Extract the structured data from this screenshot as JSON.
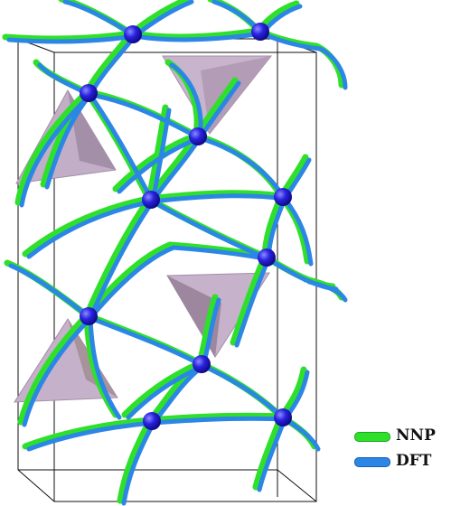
{
  "legend": {
    "items": [
      {
        "label": "NNP",
        "color": "#2fe02a"
      },
      {
        "label": "DFT",
        "color": "#2b86e6"
      }
    ]
  },
  "colors": {
    "nnp": "#2fe02a",
    "nnp_dark": "#1aa81a",
    "dft": "#2b86e6",
    "dft_dark": "#1a5fb0",
    "atom": "#1c10c8",
    "tetrahedron": "#b9a3bd",
    "cell_edge": "#111111"
  }
}
